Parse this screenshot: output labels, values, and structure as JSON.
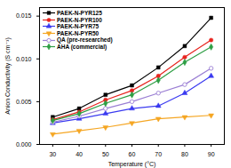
{
  "chart_data": {
    "type": "line",
    "x_label": "Temperature (°C)",
    "y_label": "Anion Conductivity (S cm⁻¹)",
    "x": [
      30,
      40,
      50,
      60,
      70,
      80,
      90
    ],
    "xlim": [
      25,
      95
    ],
    "xticks": [
      30,
      40,
      50,
      60,
      70,
      80,
      90
    ],
    "ylim": [
      0,
      0.016
    ],
    "yticks": [
      {
        "value": 0,
        "label": "0.000"
      },
      {
        "value": 0.005,
        "label": "0.005"
      },
      {
        "value": 0.01,
        "label": "0.010"
      },
      {
        "value": 0.015,
        "label": "0.015"
      }
    ],
    "legend": "top-left",
    "series": [
      {
        "name": "PAEK-N-PYR125",
        "color": "#000000",
        "marker": "square",
        "values": [
          0.0032,
          0.0042,
          0.0058,
          0.0069,
          0.009,
          0.0115,
          0.0148
        ]
      },
      {
        "name": "PAEK-N-PYR100",
        "color": "#e8231e",
        "marker": "circle",
        "values": [
          0.0029,
          0.0038,
          0.0052,
          0.0063,
          0.008,
          0.0102,
          0.0122
        ]
      },
      {
        "name": "PAEK-N-PYR75",
        "color": "#3a3af0",
        "marker": "triangle",
        "values": [
          0.0025,
          0.003,
          0.0036,
          0.0042,
          0.0045,
          0.006,
          0.008
        ]
      },
      {
        "name": "PAEK-N-PYR50",
        "color": "#f5a623",
        "marker": "triangle-down",
        "values": [
          0.0012,
          0.0016,
          0.002,
          0.0025,
          0.003,
          0.0032,
          0.0034
        ]
      },
      {
        "name": "QA (pre-researched)",
        "color": "#9b7fd4",
        "marker": "circle-open",
        "values": [
          0.0026,
          0.0033,
          0.0042,
          0.005,
          0.006,
          0.007,
          0.0089
        ]
      },
      {
        "name": "AHA (commercial)",
        "color": "#2e9e44",
        "marker": "diamond",
        "values": [
          0.0028,
          0.0036,
          0.0048,
          0.0058,
          0.0075,
          0.0096,
          0.0114
        ]
      }
    ]
  }
}
